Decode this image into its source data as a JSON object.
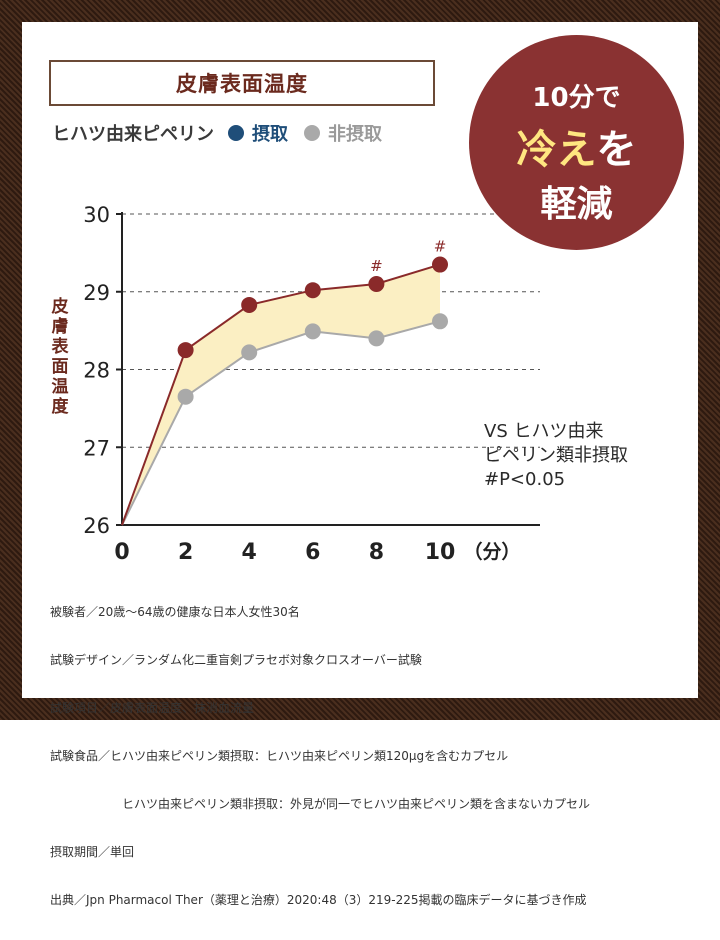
{
  "title": "皮膚表面温度",
  "legend": {
    "subject": "ヒハツ由来ピペリン",
    "taken": "摂取",
    "not_taken": "非摂取"
  },
  "badge": {
    "line1": "10分で",
    "line2a": "冷え",
    "line2b": "を",
    "line3": "軽減"
  },
  "vs_note": {
    "line1": "VS ヒハツ由来",
    "line2": "ピペリン類非摂取",
    "line3": "#P<0.05"
  },
  "notes": [
    "被験者／20歳〜64歳の健康な日本人女性30名",
    "試験デザイン／ランダム化二重盲剣プラセボ対象クロスオーバー試験",
    "試験項目／皮膚表面温度、抹消血流量",
    "試験食品／ヒハツ由来ピペリン類摂取：ヒハツ由来ピペリン類120μgを含むカプセル",
    "ヒハツ由来ピペリン類非摂取：外見が同一でヒハツ由来ピペリン類を含まないカプセル",
    "摂取期間／単回",
    "出典／Jpn Pharmacol Ther（薬理と治療）2020:48（3）219-225掲載の臨床データに基づき作成"
  ],
  "colors": {
    "taken": "#8a2a2a",
    "not_taken": "#a9a9a9",
    "fill": "#fbefc3",
    "badge": "#8a3232"
  },
  "chart_data": {
    "type": "line",
    "title": "皮膚表面温度",
    "ylabel": "皮膚表面温度",
    "xlabel": "（分）",
    "x": [
      0,
      2,
      4,
      6,
      8,
      10
    ],
    "x_tick_labels": [
      "0",
      "2",
      "4",
      "6",
      "8",
      "10"
    ],
    "ylim": [
      26,
      30
    ],
    "y_ticks": [
      26,
      27,
      28,
      29,
      30
    ],
    "y_tick_labels": [
      "26",
      "27",
      "28",
      "29",
      "30"
    ],
    "series": [
      {
        "name": "摂取",
        "values": [
          26.0,
          28.25,
          28.83,
          29.02,
          29.1,
          29.35
        ]
      },
      {
        "name": "非摂取",
        "values": [
          26.0,
          27.65,
          28.22,
          28.49,
          28.4,
          28.62
        ]
      }
    ],
    "annotations": [
      {
        "x": 8,
        "text": "#"
      },
      {
        "x": 10,
        "text": "#"
      }
    ],
    "grid": "dashed horizontal"
  }
}
